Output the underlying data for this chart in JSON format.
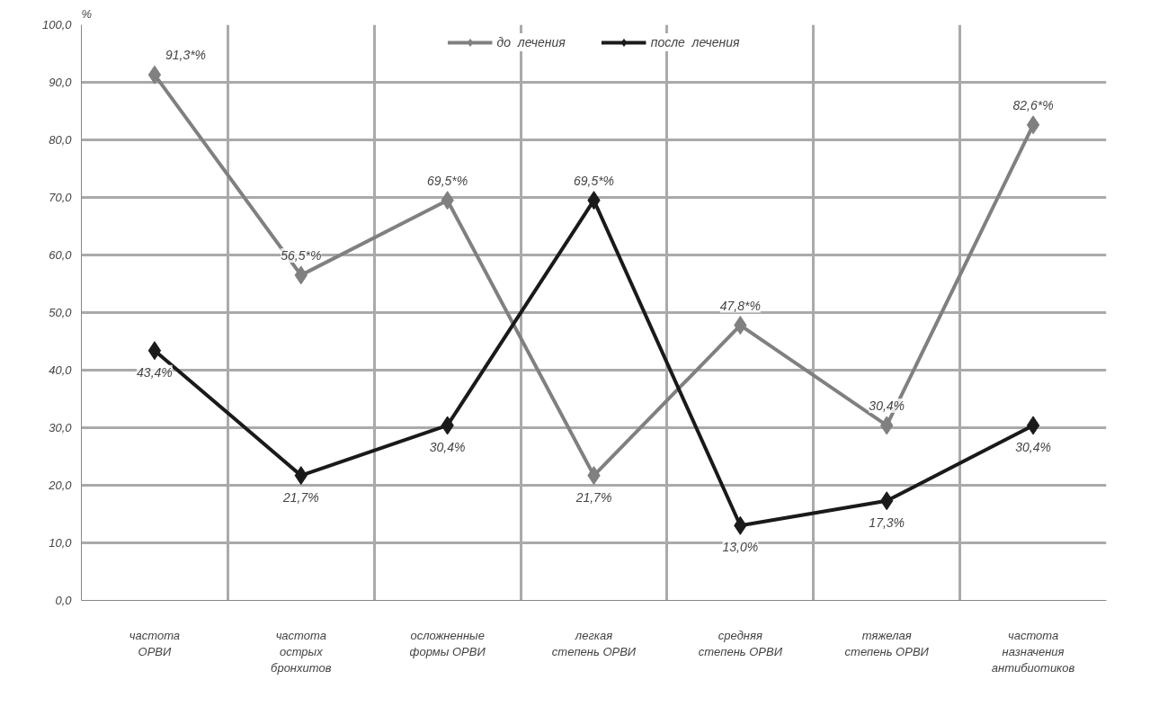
{
  "chart_data": {
    "type": "line",
    "ylabel": "%",
    "categories": [
      "частота\nОРВИ",
      "частота\nострых\nбронхитов",
      "осложненные\nформы ОРВИ",
      "легкая\nстепень ОРВИ",
      "средняя\nстепень ОРВИ",
      "тяжелая\nстепень ОРВИ",
      "частота\nназначения\nантибиотиков"
    ],
    "series": [
      {
        "name": "до  лечения",
        "color": "#808080",
        "values": [
          91.3,
          56.5,
          69.5,
          21.7,
          47.8,
          30.4,
          82.6
        ],
        "value_labels": [
          "91,3*%",
          "56,5*%",
          "69,5*%",
          "21,7%",
          "47,8*%",
          "30,4%",
          "82,6*%"
        ]
      },
      {
        "name": "после  лечения",
        "color": "#1a1a1a",
        "values": [
          43.4,
          21.7,
          30.4,
          69.5,
          13.0,
          17.3,
          30.4
        ],
        "value_labels": [
          "43,4%",
          "21,7%",
          "30,4%",
          "69,5*%",
          "13,0%",
          "17,3%",
          "30,4%"
        ]
      }
    ],
    "ylim": [
      0,
      100
    ],
    "yticks": [
      {
        "value": 0,
        "label": "0,0"
      },
      {
        "value": 10,
        "label": "10,0"
      },
      {
        "value": 20,
        "label": "20,0"
      },
      {
        "value": 30,
        "label": "30,0"
      },
      {
        "value": 40,
        "label": "40,0"
      },
      {
        "value": 50,
        "label": "50,0"
      },
      {
        "value": 60,
        "label": "60,0"
      },
      {
        "value": 70,
        "label": "70,0"
      },
      {
        "value": 80,
        "label": "80,0"
      },
      {
        "value": 90,
        "label": "90,0"
      },
      {
        "value": 100,
        "label": "100,0"
      }
    ],
    "grid": true,
    "legend": "top",
    "marker": "diamond",
    "line_style": "solid"
  }
}
